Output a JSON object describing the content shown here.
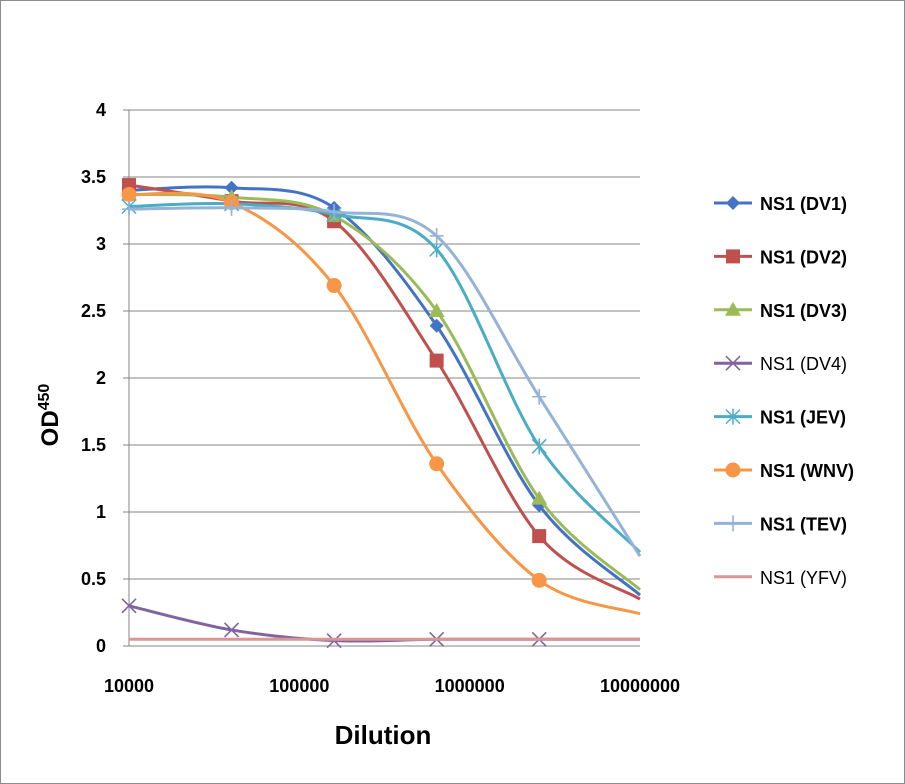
{
  "chart_data": {
    "type": "line",
    "xlabel": "Dilution",
    "ylabel_base": "OD",
    "ylabel_sup": "450",
    "xscale": "log",
    "xlim": [
      10000,
      10000000
    ],
    "ylim": [
      0,
      4
    ],
    "yticks": [
      0,
      0.5,
      1,
      1.5,
      2,
      2.5,
      3,
      3.5,
      4
    ],
    "ytick_labels": [
      "0",
      "0.5",
      "1",
      "1.5",
      "2",
      "2.5",
      "3",
      "3.5",
      "4"
    ],
    "xticks": [
      10000,
      100000,
      1000000,
      10000000
    ],
    "xtick_labels": [
      "10000",
      "100000",
      "1000000",
      "10000000"
    ],
    "grid": "horizontal",
    "legend_position": "right",
    "x": [
      10000,
      40000,
      160000,
      640000,
      2560000,
      10000000
    ],
    "series": [
      {
        "name": "NS1 (DV1)",
        "color": "#4472c4",
        "marker": "diamond",
        "bold": true,
        "values": [
          3.4,
          3.42,
          3.27,
          2.39,
          1.05,
          0.38
        ]
      },
      {
        "name": "NS1 (DV2)",
        "color": "#c0504d",
        "marker": "square",
        "bold": true,
        "values": [
          3.44,
          3.32,
          3.17,
          2.13,
          0.82,
          0.35
        ]
      },
      {
        "name": "NS1 (DV3)",
        "color": "#9bbb59",
        "marker": "triangle",
        "bold": true,
        "values": [
          3.37,
          3.35,
          3.21,
          2.5,
          1.1,
          0.42
        ]
      },
      {
        "name": "NS1 (DV4)",
        "color": "#8064a2",
        "marker": "x",
        "bold": false,
        "values": [
          0.3,
          0.12,
          0.04,
          0.05,
          0.05,
          0.05
        ]
      },
      {
        "name": "NS1 (JEV)",
        "color": "#4bacc6",
        "marker": "asterisk",
        "bold": true,
        "values": [
          3.28,
          3.3,
          3.22,
          2.96,
          1.49,
          0.7
        ]
      },
      {
        "name": "NS1 (WNV)",
        "color": "#f79646",
        "marker": "circle",
        "bold": true,
        "values": [
          3.37,
          3.31,
          2.69,
          1.36,
          0.49,
          0.24
        ]
      },
      {
        "name": "NS1 (TEV)",
        "color": "#95b3d7",
        "marker": "plus",
        "bold": true,
        "values": [
          3.26,
          3.27,
          3.24,
          3.06,
          1.86,
          0.67
        ]
      },
      {
        "name": "NS1 (YFV)",
        "color": "#d99694",
        "marker": "none",
        "bold": false,
        "values": [
          0.05,
          0.05,
          0.05,
          0.05,
          0.05,
          0.05
        ]
      }
    ]
  }
}
